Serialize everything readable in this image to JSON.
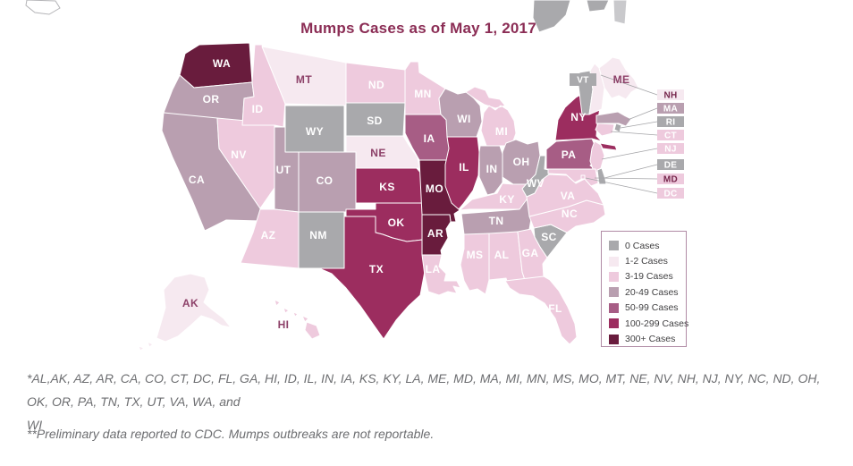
{
  "title": "Mumps Cases as of May 1, 2017",
  "legend": {
    "items": [
      {
        "label": "0 Cases",
        "color": "#a9a9ac"
      },
      {
        "label": "1-2 Cases",
        "color": "#f6e9f0"
      },
      {
        "label": "3-19 Cases",
        "color": "#eecadd"
      },
      {
        "label": "20-49 Cases",
        "color": "#b99fb0"
      },
      {
        "label": "50-99 Cases",
        "color": "#a75d85"
      },
      {
        "label": "100-299 Cases",
        "color": "#9c2d5f"
      },
      {
        "label": "300+ Cases",
        "color": "#691c3d"
      }
    ]
  },
  "footnotes": {
    "line1": "*AL,AK, AZ, AR, CA, CO, CT, DC, FL, GA, HI, ID, IL, IN, IA, KS, KY, LA, ME, MD, MA, MI, MN, MS, MO, MT, NE, NV, NH, NJ, NY, NC, ND, OH, OK, OR, PA, TN, TX, UT, VA, WA, and",
    "line2": "WI",
    "note2": "**Preliminary data reported to CDC. Mumps outbreaks are not reportable."
  },
  "palette": {
    "title_color": "#8b2d55",
    "footnote_color": "#6d6e71",
    "legend_text": "#414042",
    "legend_border": "#b08ba5",
    "state_border": "#ffffff",
    "label_light": "#ffffff",
    "label_dark": "#8d4169",
    "leader_line": "#a5a5a8",
    "background": "#ffffff"
  },
  "map": {
    "states": [
      {
        "abbr": "WA",
        "category": "300+ Cases",
        "label_style": "light"
      },
      {
        "abbr": "OR",
        "category": "20-49 Cases",
        "label_style": "light"
      },
      {
        "abbr": "CA",
        "category": "20-49 Cases",
        "label_style": "light"
      },
      {
        "abbr": "NV",
        "category": "3-19 Cases",
        "label_style": "light"
      },
      {
        "abbr": "ID",
        "category": "3-19 Cases",
        "label_style": "light"
      },
      {
        "abbr": "MT",
        "category": "1-2 Cases",
        "label_style": "dark"
      },
      {
        "abbr": "WY",
        "category": "0 Cases",
        "label_style": "light"
      },
      {
        "abbr": "UT",
        "category": "20-49 Cases",
        "label_style": "light"
      },
      {
        "abbr": "CO",
        "category": "20-49 Cases",
        "label_style": "light"
      },
      {
        "abbr": "AZ",
        "category": "3-19 Cases",
        "label_style": "light"
      },
      {
        "abbr": "NM",
        "category": "0 Cases",
        "label_style": "light"
      },
      {
        "abbr": "ND",
        "category": "3-19 Cases",
        "label_style": "light"
      },
      {
        "abbr": "SD",
        "category": "0 Cases",
        "label_style": "light"
      },
      {
        "abbr": "NE",
        "category": "1-2 Cases",
        "label_style": "dark"
      },
      {
        "abbr": "KS",
        "category": "100-299 Cases",
        "label_style": "light"
      },
      {
        "abbr": "OK",
        "category": "100-299 Cases",
        "label_style": "light"
      },
      {
        "abbr": "TX",
        "category": "100-299 Cases",
        "label_style": "light"
      },
      {
        "abbr": "MN",
        "category": "3-19 Cases",
        "label_style": "light"
      },
      {
        "abbr": "IA",
        "category": "50-99 Cases",
        "label_style": "light"
      },
      {
        "abbr": "MO",
        "category": "300+ Cases",
        "label_style": "light"
      },
      {
        "abbr": "AR",
        "category": "300+ Cases",
        "label_style": "light"
      },
      {
        "abbr": "LA",
        "category": "3-19 Cases",
        "label_style": "light"
      },
      {
        "abbr": "WI",
        "category": "20-49 Cases",
        "label_style": "light"
      },
      {
        "abbr": "IL",
        "category": "100-299 Cases",
        "label_style": "light"
      },
      {
        "abbr": "IN",
        "category": "20-49 Cases",
        "label_style": "light"
      },
      {
        "abbr": "MI",
        "category": "3-19 Cases",
        "label_style": "light"
      },
      {
        "abbr": "OH",
        "category": "20-49 Cases",
        "label_style": "light"
      },
      {
        "abbr": "KY",
        "category": "3-19 Cases",
        "label_style": "light"
      },
      {
        "abbr": "TN",
        "category": "20-49 Cases",
        "label_style": "light"
      },
      {
        "abbr": "MS",
        "category": "3-19 Cases",
        "label_style": "light"
      },
      {
        "abbr": "AL",
        "category": "3-19 Cases",
        "label_style": "light"
      },
      {
        "abbr": "GA",
        "category": "3-19 Cases",
        "label_style": "light"
      },
      {
        "abbr": "FL",
        "category": "3-19 Cases",
        "label_style": "light"
      },
      {
        "abbr": "SC",
        "category": "0 Cases",
        "label_style": "light"
      },
      {
        "abbr": "NC",
        "category": "3-19 Cases",
        "label_style": "light"
      },
      {
        "abbr": "VA",
        "category": "3-19 Cases",
        "label_style": "light"
      },
      {
        "abbr": "WV",
        "category": "0 Cases",
        "label_style": "light"
      },
      {
        "abbr": "PA",
        "category": "50-99 Cases",
        "label_style": "light"
      },
      {
        "abbr": "NY",
        "category": "100-299 Cases",
        "label_style": "light"
      },
      {
        "abbr": "ME",
        "category": "1-2 Cases",
        "label_style": "dark"
      },
      {
        "abbr": "AK",
        "category": "1-2 Cases",
        "label_style": "dark"
      },
      {
        "abbr": "HI",
        "category": "3-19 Cases",
        "label_style": "dark"
      },
      {
        "abbr": "VT",
        "category": "0 Cases",
        "label_style": "light",
        "callout": true
      },
      {
        "abbr": "NH",
        "category": "1-2 Cases",
        "label_style": "dark",
        "callout": true
      },
      {
        "abbr": "MA",
        "category": "20-49 Cases",
        "label_style": "light",
        "callout": true
      },
      {
        "abbr": "RI",
        "category": "0 Cases",
        "label_style": "light",
        "callout": true
      },
      {
        "abbr": "CT",
        "category": "3-19 Cases",
        "label_style": "light",
        "callout": true
      },
      {
        "abbr": "NJ",
        "category": "3-19 Cases",
        "label_style": "light",
        "callout": true
      },
      {
        "abbr": "DE",
        "category": "0 Cases",
        "label_style": "light",
        "callout": true
      },
      {
        "abbr": "MD",
        "category": "3-19 Cases",
        "label_style": "dark",
        "callout": true
      },
      {
        "abbr": "DC",
        "category": "3-19 Cases",
        "label_style": "light",
        "callout": true
      }
    ]
  }
}
